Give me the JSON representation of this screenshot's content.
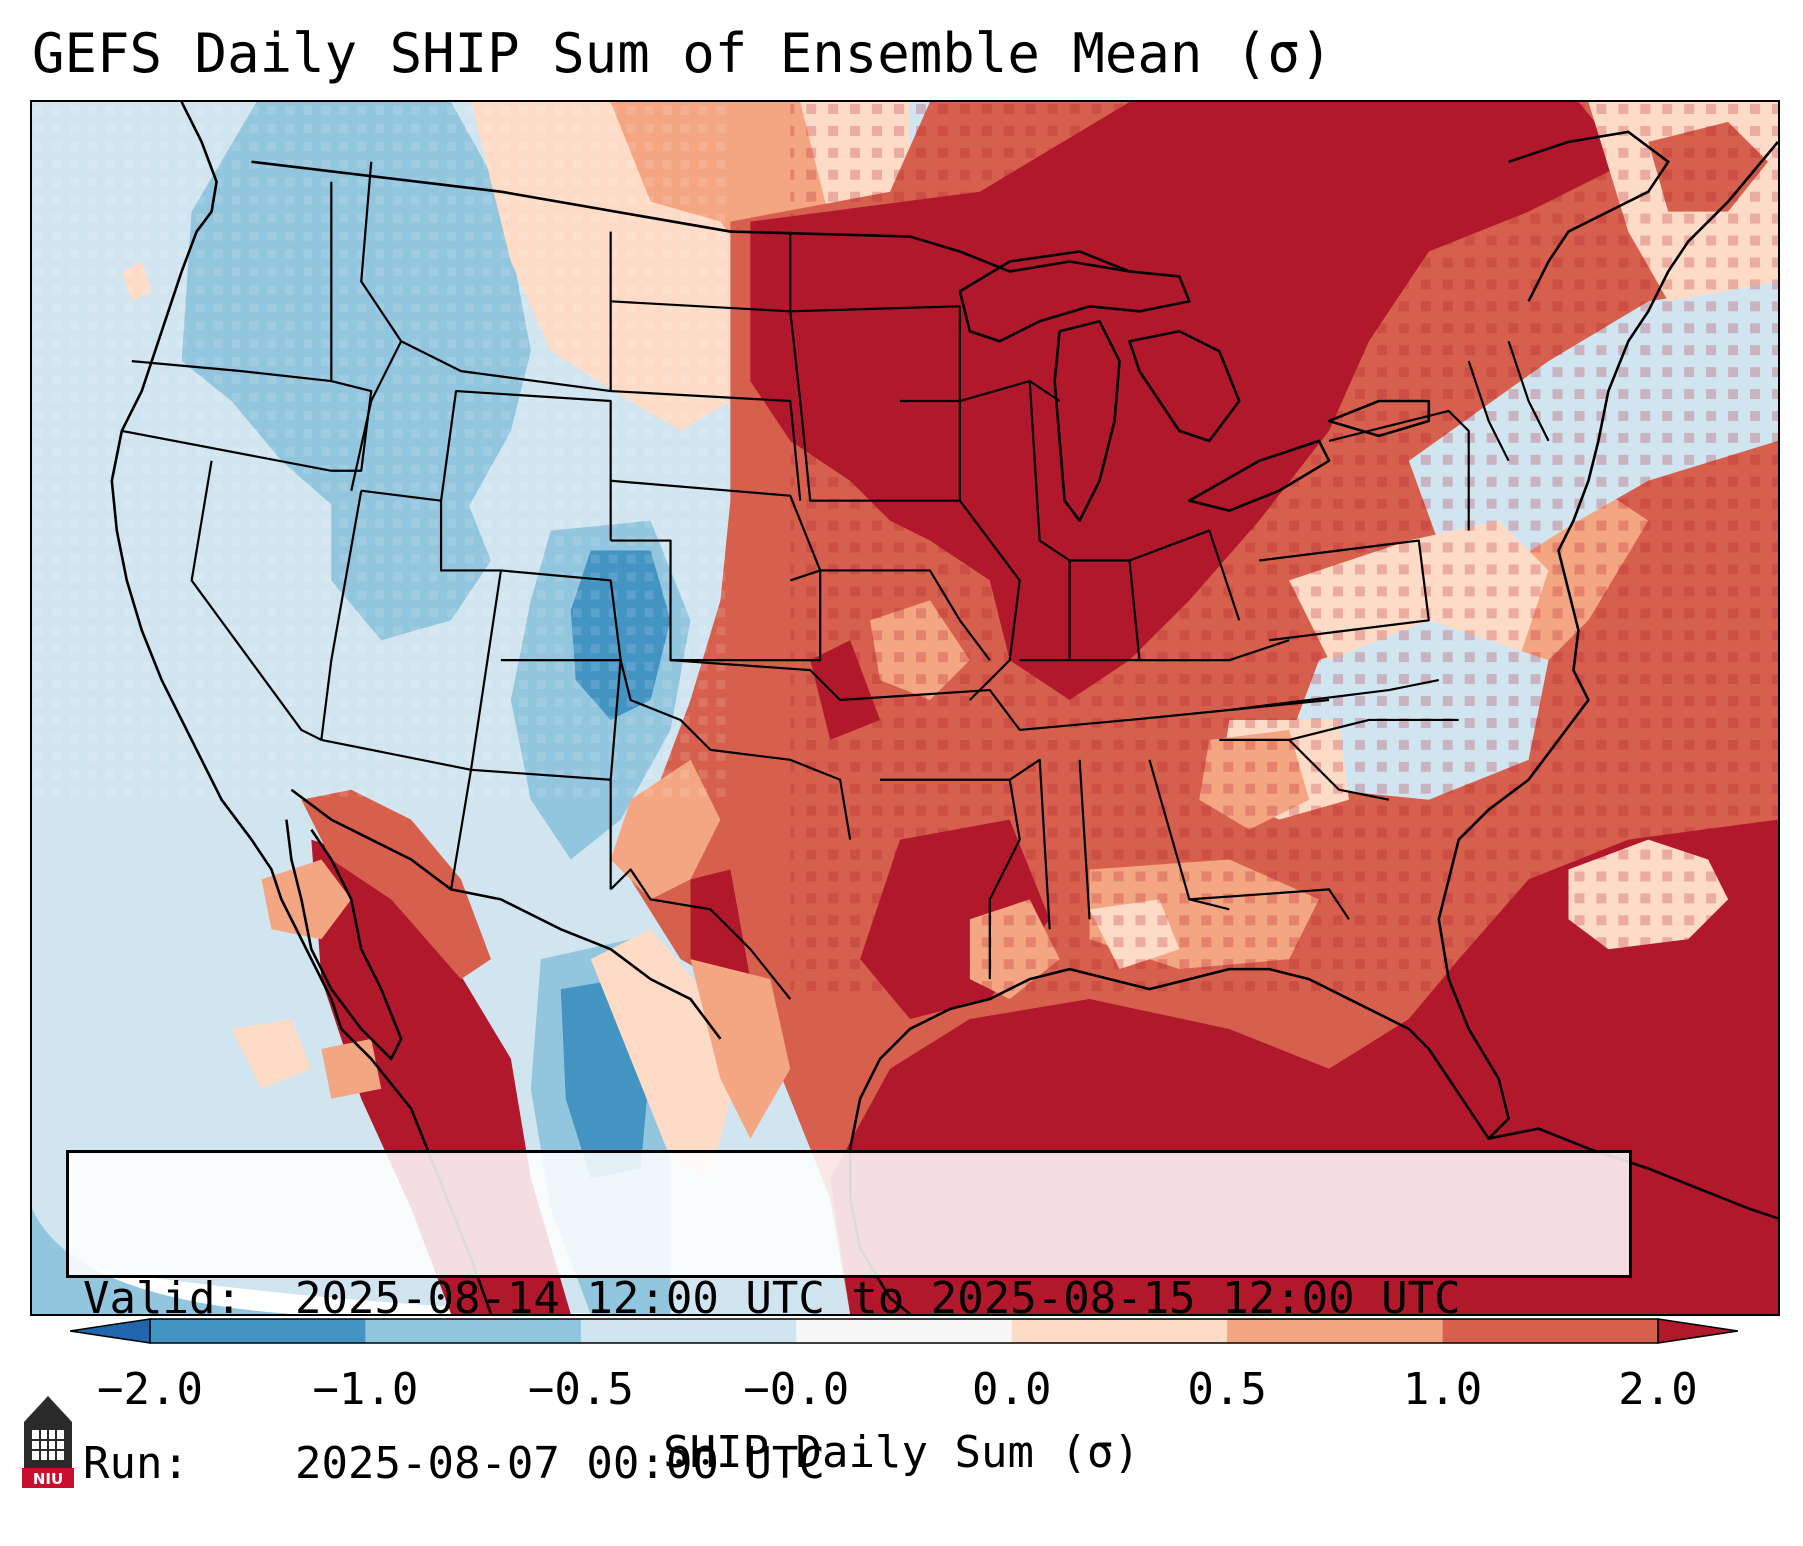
{
  "title": "GEFS Daily SHIP Sum of Ensemble Mean (σ)",
  "valid_label": "Valid:",
  "valid_text": "2025-08-14 12:00 UTC to 2025-08-15 12:00 UTC",
  "run_label": "Run:",
  "run_text": "2025-08-07 00:00 UTC",
  "colorbar": {
    "label": "SHIP Daily Sum (σ)",
    "ticks": [
      "−2.0",
      "−1.0",
      "−0.5",
      "−0.0",
      "0.0",
      "0.5",
      "1.0",
      "2.0"
    ],
    "bins": [
      {
        "color": "#4393c3"
      },
      {
        "color": "#92c5de"
      },
      {
        "color": "#d1e5f0"
      },
      {
        "color": "#f7f7f7"
      },
      {
        "color": "#fddbc7"
      },
      {
        "color": "#f4a582"
      },
      {
        "color": "#d6604d"
      }
    ],
    "under_color": "#2166ac",
    "over_color": "#b2182b"
  },
  "logo": {
    "text": "NIU",
    "color": "#c8102e"
  }
}
